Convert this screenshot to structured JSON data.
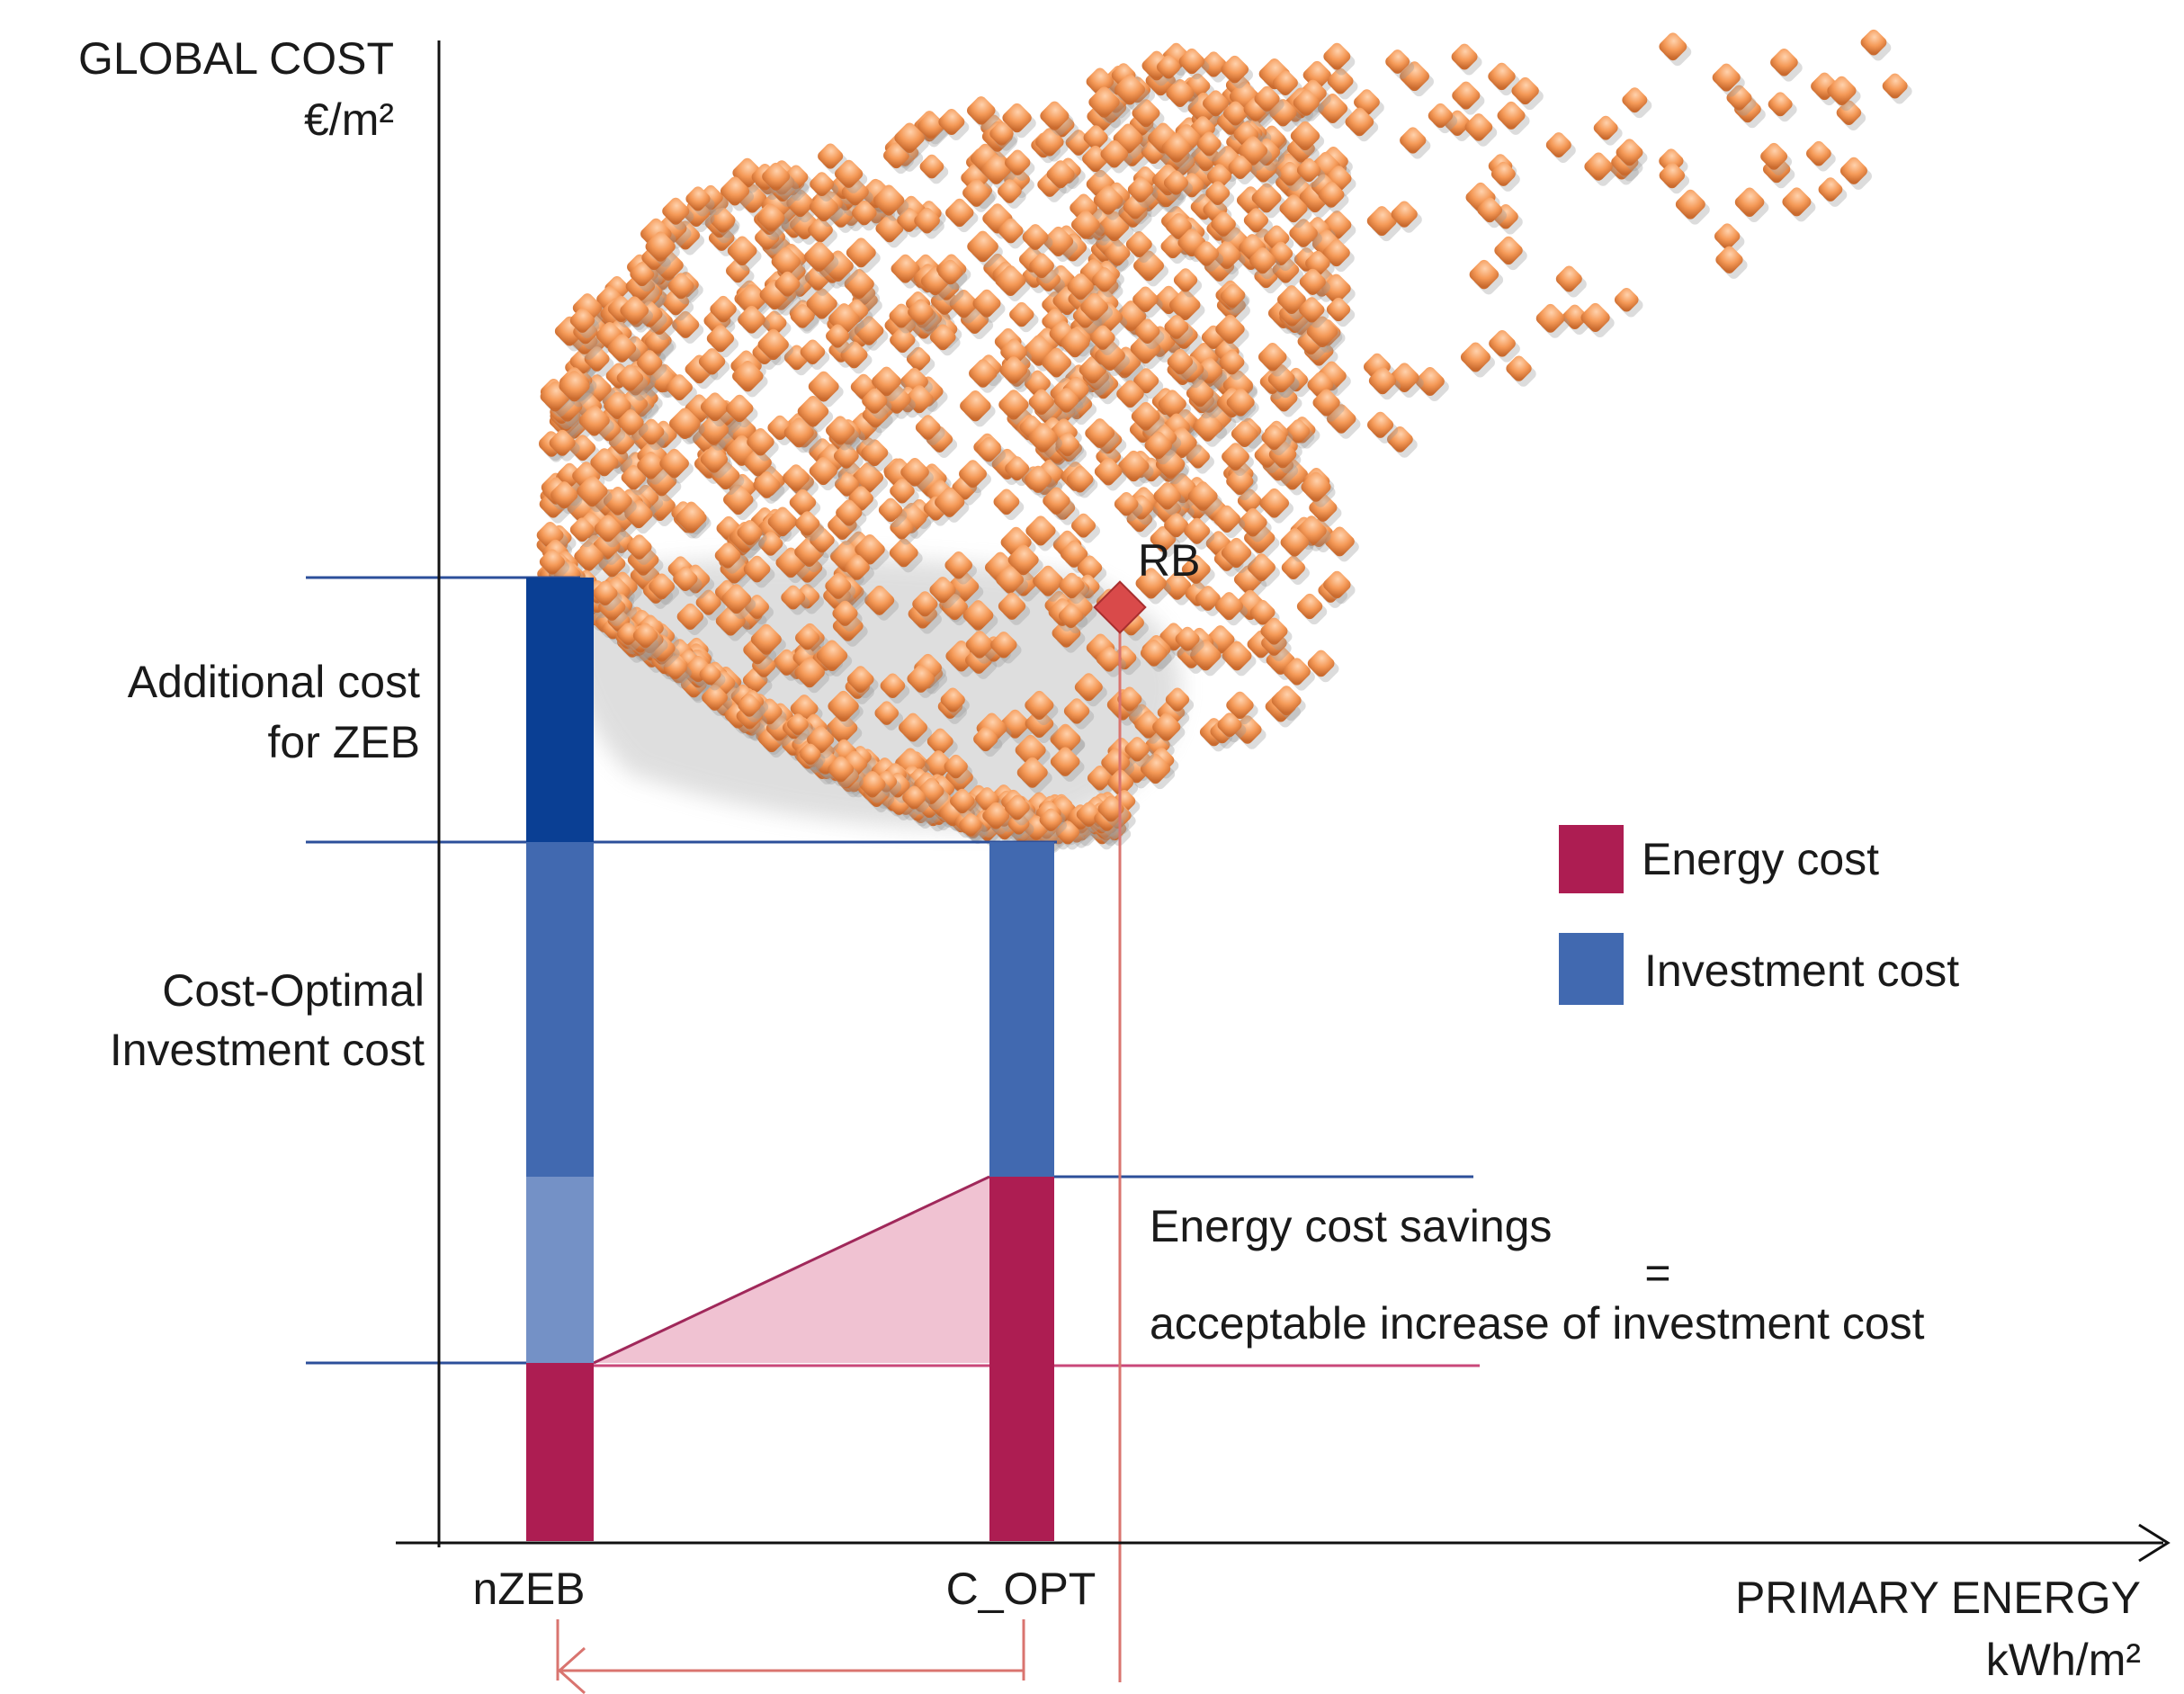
{
  "axes": {
    "y_title": "GLOBAL COST",
    "y_unit": "€/m²",
    "x_title": "PRIMARY ENERGY",
    "x_unit": "kWh/m²"
  },
  "markers": {
    "nzeb": "nZEB",
    "c_opt": "C_OPT",
    "rb": "RB"
  },
  "annotations": {
    "additional_cost_line1": "Additional cost",
    "additional_cost_line2": "for ZEB",
    "cost_optimal_line1": "Cost-Optimal",
    "cost_optimal_line2": "Investment cost",
    "savings_line1": "Energy cost savings",
    "savings_equals": "=",
    "savings_line2": "acceptable increase of investment cost"
  },
  "legend": {
    "position": "right",
    "items": [
      {
        "label": "Energy cost",
        "color": "#ad1d52"
      },
      {
        "label": "Investment cost",
        "color": "#4169b0"
      }
    ]
  },
  "colors": {
    "energy_cost": "#ad1d52",
    "investment_cost": "#4169b0",
    "additional_cost": "#0a3f94",
    "scatter_points": "#f6a266",
    "rb_marker": "#d94a4a",
    "savings_triangle": "#f0c2d2"
  }
}
